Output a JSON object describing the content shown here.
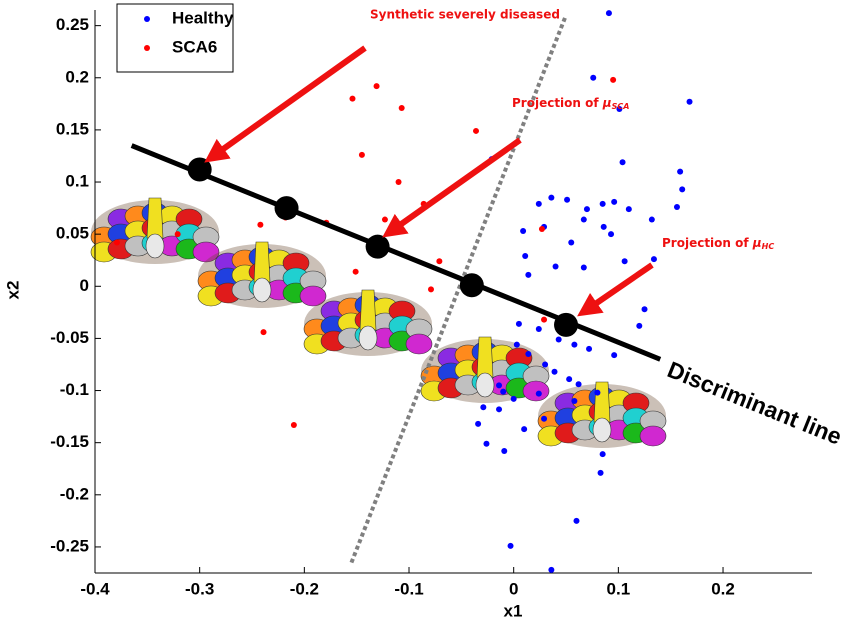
{
  "chart_data": {
    "type": "scatter",
    "xlabel": "x1",
    "ylabel": "x2",
    "xlim": [
      -0.4,
      0.285
    ],
    "ylim": [
      -0.275,
      0.265
    ],
    "xticks": [
      -0.4,
      -0.3,
      -0.2,
      -0.1,
      0,
      0.1,
      0.2
    ],
    "yticks": [
      -0.25,
      -0.2,
      -0.15,
      -0.1,
      -0.05,
      0,
      0.05,
      0.1,
      0.15,
      0.2,
      0.25
    ],
    "legend": "upper left",
    "series": [
      {
        "name": "Healthy",
        "color": "#0000ff",
        "x": [
          0.091,
          0.076,
          0.168,
          0.101,
          0.104,
          -0.021,
          0.024,
          0.036,
          0.051,
          0.07,
          0.085,
          0.096,
          0.11,
          0.132,
          0.156,
          0.161,
          0.159,
          0.029,
          0.055,
          0.067,
          0.086,
          0.093,
          0.009,
          0.011,
          0.04,
          0.067,
          0.106,
          0.134,
          0.014,
          0.005,
          0.024,
          0.043,
          0.058,
          0.072,
          0.096,
          0.003,
          0.014,
          0.03,
          0.039,
          0.053,
          0.062,
          -0.014,
          -0.01,
          0.0,
          -0.029,
          -0.014,
          0.024,
          0.058,
          0.08,
          -0.034,
          -0.026,
          -0.009,
          0.01,
          0.029,
          0.083,
          0.085,
          -0.003,
          0.06,
          0.036,
          0.125,
          0.12
        ],
        "y": [
          0.262,
          0.2,
          0.177,
          0.17,
          0.119,
          0.122,
          0.079,
          0.085,
          0.083,
          0.074,
          0.079,
          0.081,
          0.074,
          0.064,
          0.076,
          0.093,
          0.11,
          0.057,
          0.042,
          0.064,
          0.057,
          0.05,
          0.053,
          0.029,
          0.019,
          0.018,
          0.024,
          0.026,
          0.011,
          -0.036,
          -0.041,
          -0.051,
          -0.056,
          -0.06,
          -0.066,
          -0.056,
          -0.065,
          -0.075,
          -0.082,
          -0.089,
          -0.094,
          -0.095,
          -0.101,
          -0.108,
          -0.116,
          -0.118,
          -0.103,
          -0.11,
          -0.102,
          -0.132,
          -0.151,
          -0.158,
          -0.137,
          -0.127,
          -0.179,
          -0.161,
          -0.249,
          -0.225,
          -0.272,
          -0.022,
          -0.038
        ]
      },
      {
        "name": "SCA6",
        "color": "#ff0000",
        "x": [
          0.095,
          -0.131,
          -0.154,
          -0.107,
          -0.036,
          -0.145,
          -0.11,
          -0.123,
          -0.086,
          -0.179,
          -0.218,
          -0.242,
          0.027,
          -0.151,
          -0.071,
          -0.079,
          -0.239,
          -0.21,
          -0.379,
          -0.321,
          0.029
        ],
        "y": [
          0.198,
          0.192,
          0.18,
          0.171,
          0.149,
          0.126,
          0.1,
          0.064,
          0.079,
          0.061,
          0.066,
          0.059,
          0.055,
          0.014,
          0.024,
          -0.003,
          -0.044,
          -0.133,
          0.042,
          0.05,
          -0.032
        ]
      }
    ],
    "projections": {
      "x": [
        -0.3,
        -0.217,
        -0.13,
        -0.04,
        0.05
      ],
      "y": [
        0.112,
        0.075,
        0.038,
        0.001,
        -0.037
      ]
    },
    "discriminant_line": {
      "x": [
        -0.365,
        0.14
      ],
      "y": [
        0.135,
        -0.07
      ],
      "label": "Discriminant line"
    },
    "boundary": {
      "x": [
        -0.155,
        0.05
      ],
      "y": [
        -0.265,
        0.26
      ]
    },
    "annotations": [
      {
        "text": "Synthetic severely diseased"
      },
      {
        "text": "Projection of ",
        "symbol": "μ",
        "subscript": "SCA"
      },
      {
        "text": "Projection of ",
        "symbol": "μ",
        "subscript": "HC"
      }
    ]
  }
}
